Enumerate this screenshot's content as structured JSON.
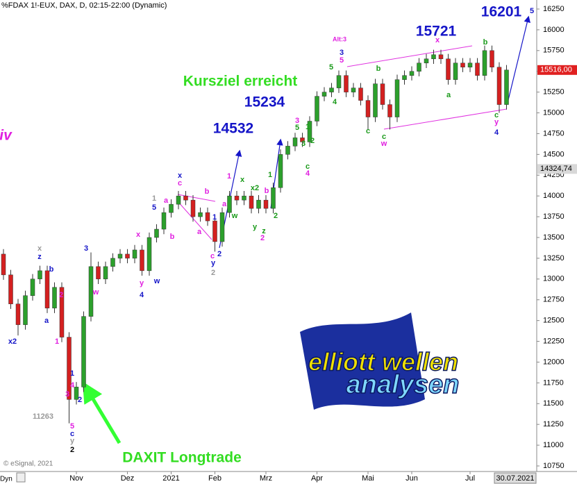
{
  "chart_data": {
    "type": "candlestick",
    "title": "%FDAX 1!-EUX, DAX, D, 02:15-22:00 (Dynamic)",
    "categories": [
      null,
      null,
      null,
      null,
      null,
      null,
      null,
      null,
      null,
      null,
      "Nov",
      null,
      null,
      null,
      null,
      null,
      null,
      "Dez",
      null,
      null,
      null,
      null,
      null,
      "2021",
      null,
      null,
      null,
      null,
      null,
      "Feb",
      null,
      null,
      null,
      null,
      null,
      null,
      "Mrz",
      null,
      null,
      null,
      null,
      null,
      null,
      "Apr",
      null,
      null,
      null,
      null,
      null,
      null,
      "Mai",
      null,
      null,
      null,
      null,
      null,
      "Jun",
      null,
      null,
      null,
      null,
      null,
      null,
      null,
      "Jul",
      null,
      null,
      null,
      null,
      "30.07.2021"
    ],
    "open": [
      13300,
      13050,
      12700,
      12450,
      12800,
      13000,
      13100,
      12650,
      12900,
      12300,
      11550,
      11700,
      12550,
      13150,
      13000,
      13150,
      13250,
      13300,
      13250,
      13350,
      13100,
      13500,
      13600,
      13800,
      13900,
      14000,
      13950,
      13750,
      13800,
      13700,
      13450,
      13800,
      14000,
      13950,
      14000,
      13850,
      13950,
      13850,
      14100,
      14500,
      14600,
      14700,
      14650,
      14900,
      15200,
      15250,
      15300,
      15450,
      15250,
      15300,
      15150,
      14950,
      15350,
      15100,
      14950,
      15400,
      15450,
      15500,
      15600,
      15650,
      15700,
      15650,
      15400,
      15600,
      15550,
      15600,
      15450,
      15750,
      15550,
      15100
    ],
    "high": [
      13360,
      13110,
      12760,
      12860,
      13060,
      13160,
      13160,
      12960,
      12960,
      12360,
      11760,
      12610,
      13320,
      13210,
      13210,
      13310,
      13360,
      13360,
      13410,
      13410,
      13560,
      13660,
      13860,
      13960,
      14060,
      14060,
      14010,
      13860,
      13860,
      13760,
      13860,
      14060,
      14060,
      14060,
      14060,
      14010,
      14010,
      14160,
      14560,
      14660,
      14760,
      14760,
      14960,
      15260,
      15310,
      15360,
      15510,
      15510,
      15360,
      15360,
      15210,
      15410,
      15410,
      15160,
      15460,
      15510,
      15560,
      15660,
      15710,
      15760,
      15760,
      15710,
      15660,
      15660,
      15660,
      15660,
      15810,
      15810,
      15610,
      15576
    ],
    "low": [
      12990,
      12640,
      12320,
      12390,
      12740,
      12940,
      12590,
      12590,
      12240,
      11263,
      11490,
      11640,
      12490,
      12940,
      12940,
      13090,
      13190,
      13190,
      13190,
      13040,
      13040,
      13440,
      13540,
      13740,
      13840,
      13890,
      13690,
      13690,
      13640,
      13330,
      13390,
      13740,
      13890,
      13890,
      13790,
      13790,
      13790,
      13790,
      14040,
      14440,
      14540,
      14590,
      14590,
      14840,
      15140,
      15190,
      15240,
      15190,
      15190,
      15090,
      14800,
      14890,
      15040,
      14800,
      14890,
      15340,
      15390,
      15440,
      15540,
      15590,
      15590,
      15340,
      15340,
      15490,
      15490,
      15390,
      15390,
      15490,
      15000,
      15040
    ],
    "close": [
      13050,
      12700,
      12450,
      12800,
      13000,
      13100,
      12650,
      12900,
      12300,
      11550,
      11700,
      12550,
      13150,
      13000,
      13150,
      13250,
      13300,
      13250,
      13350,
      13100,
      13500,
      13600,
      13800,
      13900,
      14000,
      13950,
      13750,
      13800,
      13700,
      13450,
      13800,
      14000,
      13950,
      14000,
      13850,
      13950,
      13850,
      14100,
      14500,
      14600,
      14700,
      14650,
      14900,
      15200,
      15250,
      15300,
      15450,
      15250,
      15300,
      15150,
      14950,
      15350,
      15100,
      14950,
      15400,
      15450,
      15500,
      15600,
      15650,
      15700,
      15650,
      15400,
      15600,
      15550,
      15600,
      15450,
      15750,
      15550,
      15100,
      15516
    ],
    "up_color": "#2ca02c",
    "down_color": "#d42020",
    "ylim": [
      10750,
      16250
    ],
    "yticks": [
      10750,
      11000,
      11250,
      11500,
      11750,
      12000,
      12250,
      12500,
      12750,
      13000,
      13250,
      13500,
      13750,
      14000,
      14250,
      14500,
      14750,
      15000,
      15250,
      15500,
      15750,
      16000,
      16250
    ],
    "price_labels": [
      {
        "value": 15516,
        "label": "15516,00",
        "color": "#e02020"
      },
      {
        "value": 14324.74,
        "label": "14324,74",
        "color": "#d8d8d8"
      }
    ],
    "annotations": [
      {
        "text": "5",
        "color": "#1515c8"
      },
      {
        "text": "16201",
        "color": "#1515c8"
      },
      {
        "text": "15721",
        "color": "#1515c8"
      },
      {
        "text": "15234",
        "color": "#1515c8"
      },
      {
        "text": "14532",
        "color": "#1515c8"
      },
      {
        "text": "Kursziel erreicht",
        "color": "#33dd22"
      },
      {
        "text": "DAXIT Longtrade",
        "color": "#33dd22"
      },
      {
        "text": "iv",
        "color": "#e020e0"
      },
      {
        "text": "Alt:3",
        "color": "#e020e0"
      },
      {
        "text": "3",
        "color": "#1515c8"
      },
      {
        "text": "5",
        "color": "#e020e0"
      },
      {
        "text": "5",
        "color": "#1a9a1a"
      },
      {
        "text": "x",
        "color": "#e020e0"
      },
      {
        "text": "b",
        "color": "#1a9a1a"
      },
      {
        "text": "b",
        "color": "#1a9a1a"
      },
      {
        "text": "a",
        "color": "#1a9a1a"
      },
      {
        "text": "4",
        "color": "#1a9a1a"
      },
      {
        "text": "c",
        "color": "#1a9a1a"
      },
      {
        "text": "c",
        "color": "#1a9a1a"
      },
      {
        "text": "w",
        "color": "#e020e0"
      },
      {
        "text": "c",
        "color": "#1a9a1a"
      },
      {
        "text": "y",
        "color": "#e020e0"
      },
      {
        "text": "4",
        "color": "#1515c8"
      },
      {
        "text": "3",
        "color": "#e020e0"
      },
      {
        "text": "5",
        "color": "#1a9a1a"
      },
      {
        "text": "3",
        "color": "#1a9a1a"
      },
      {
        "text": "1",
        "color": "#1a9a1a"
      },
      {
        "text": "2",
        "color": "#1a9a1a"
      },
      {
        "text": "c",
        "color": "#1a9a1a"
      },
      {
        "text": "4",
        "color": "#e020e0"
      },
      {
        "text": "1",
        "color": "#1a9a1a"
      },
      {
        "text": "x",
        "color": "#1a9a1a"
      },
      {
        "text": "x2",
        "color": "#1a9a1a"
      },
      {
        "text": "b",
        "color": "#e020e0"
      },
      {
        "text": "1",
        "color": "#e020e0"
      },
      {
        "text": "a",
        "color": "#e020e0"
      },
      {
        "text": "w",
        "color": "#1a9a1a"
      },
      {
        "text": "y",
        "color": "#1a9a1a"
      },
      {
        "text": "z",
        "color": "#1a9a1a"
      },
      {
        "text": "2",
        "color": "#1a9a1a"
      },
      {
        "text": "2",
        "color": "#e020e0"
      },
      {
        "text": "x",
        "color": "#1515c8"
      },
      {
        "text": "c",
        "color": "#e020e0"
      },
      {
        "text": "b",
        "color": "#e020e0"
      },
      {
        "text": "a",
        "color": "#e020e0"
      },
      {
        "text": "1",
        "color": "#1515c8"
      },
      {
        "text": "2",
        "color": "#1515c8"
      },
      {
        "text": "c",
        "color": "#e020e0"
      },
      {
        "text": "y",
        "color": "#1515c8"
      },
      {
        "text": "2",
        "color": "#999999"
      },
      {
        "text": "1",
        "color": "#999999"
      },
      {
        "text": "5",
        "color": "#1515c8"
      },
      {
        "text": "a",
        "color": "#e020e0"
      },
      {
        "text": "x",
        "color": "#e020e0"
      },
      {
        "text": "b",
        "color": "#e020e0"
      },
      {
        "text": "y",
        "color": "#e020e0"
      },
      {
        "text": "4",
        "color": "#1515c8"
      },
      {
        "text": "w",
        "color": "#1515c8"
      },
      {
        "text": "3",
        "color": "#1515c8"
      },
      {
        "text": "w",
        "color": "#e020e0"
      },
      {
        "text": "x",
        "color": "#999999"
      },
      {
        "text": "z",
        "color": "#1515c8"
      },
      {
        "text": "b",
        "color": "#1515c8"
      },
      {
        "text": "a",
        "color": "#1515c8"
      },
      {
        "text": "2",
        "color": "#e020e0"
      },
      {
        "text": "1",
        "color": "#e020e0"
      },
      {
        "text": "x2",
        "color": "#1515c8"
      },
      {
        "text": "1",
        "color": "#1515c8"
      },
      {
        "text": "4",
        "color": "#e020e0"
      },
      {
        "text": "2",
        "color": "#1515c8"
      },
      {
        "text": "3",
        "color": "#e020e0"
      },
      {
        "text": "11263",
        "color": "#999999"
      },
      {
        "text": "5",
        "color": "#e020e0"
      },
      {
        "text": "c",
        "color": "#1515c8"
      },
      {
        "text": "y",
        "color": "#999999"
      },
      {
        "text": "2",
        "color": "#000000"
      },
      {
        "text": "© eSignal, 2021",
        "color": "#777777"
      },
      {
        "text": "Dyn",
        "color": "#000000"
      }
    ],
    "logo": {
      "line1": "elliott wellen",
      "line2": "analysen"
    }
  }
}
